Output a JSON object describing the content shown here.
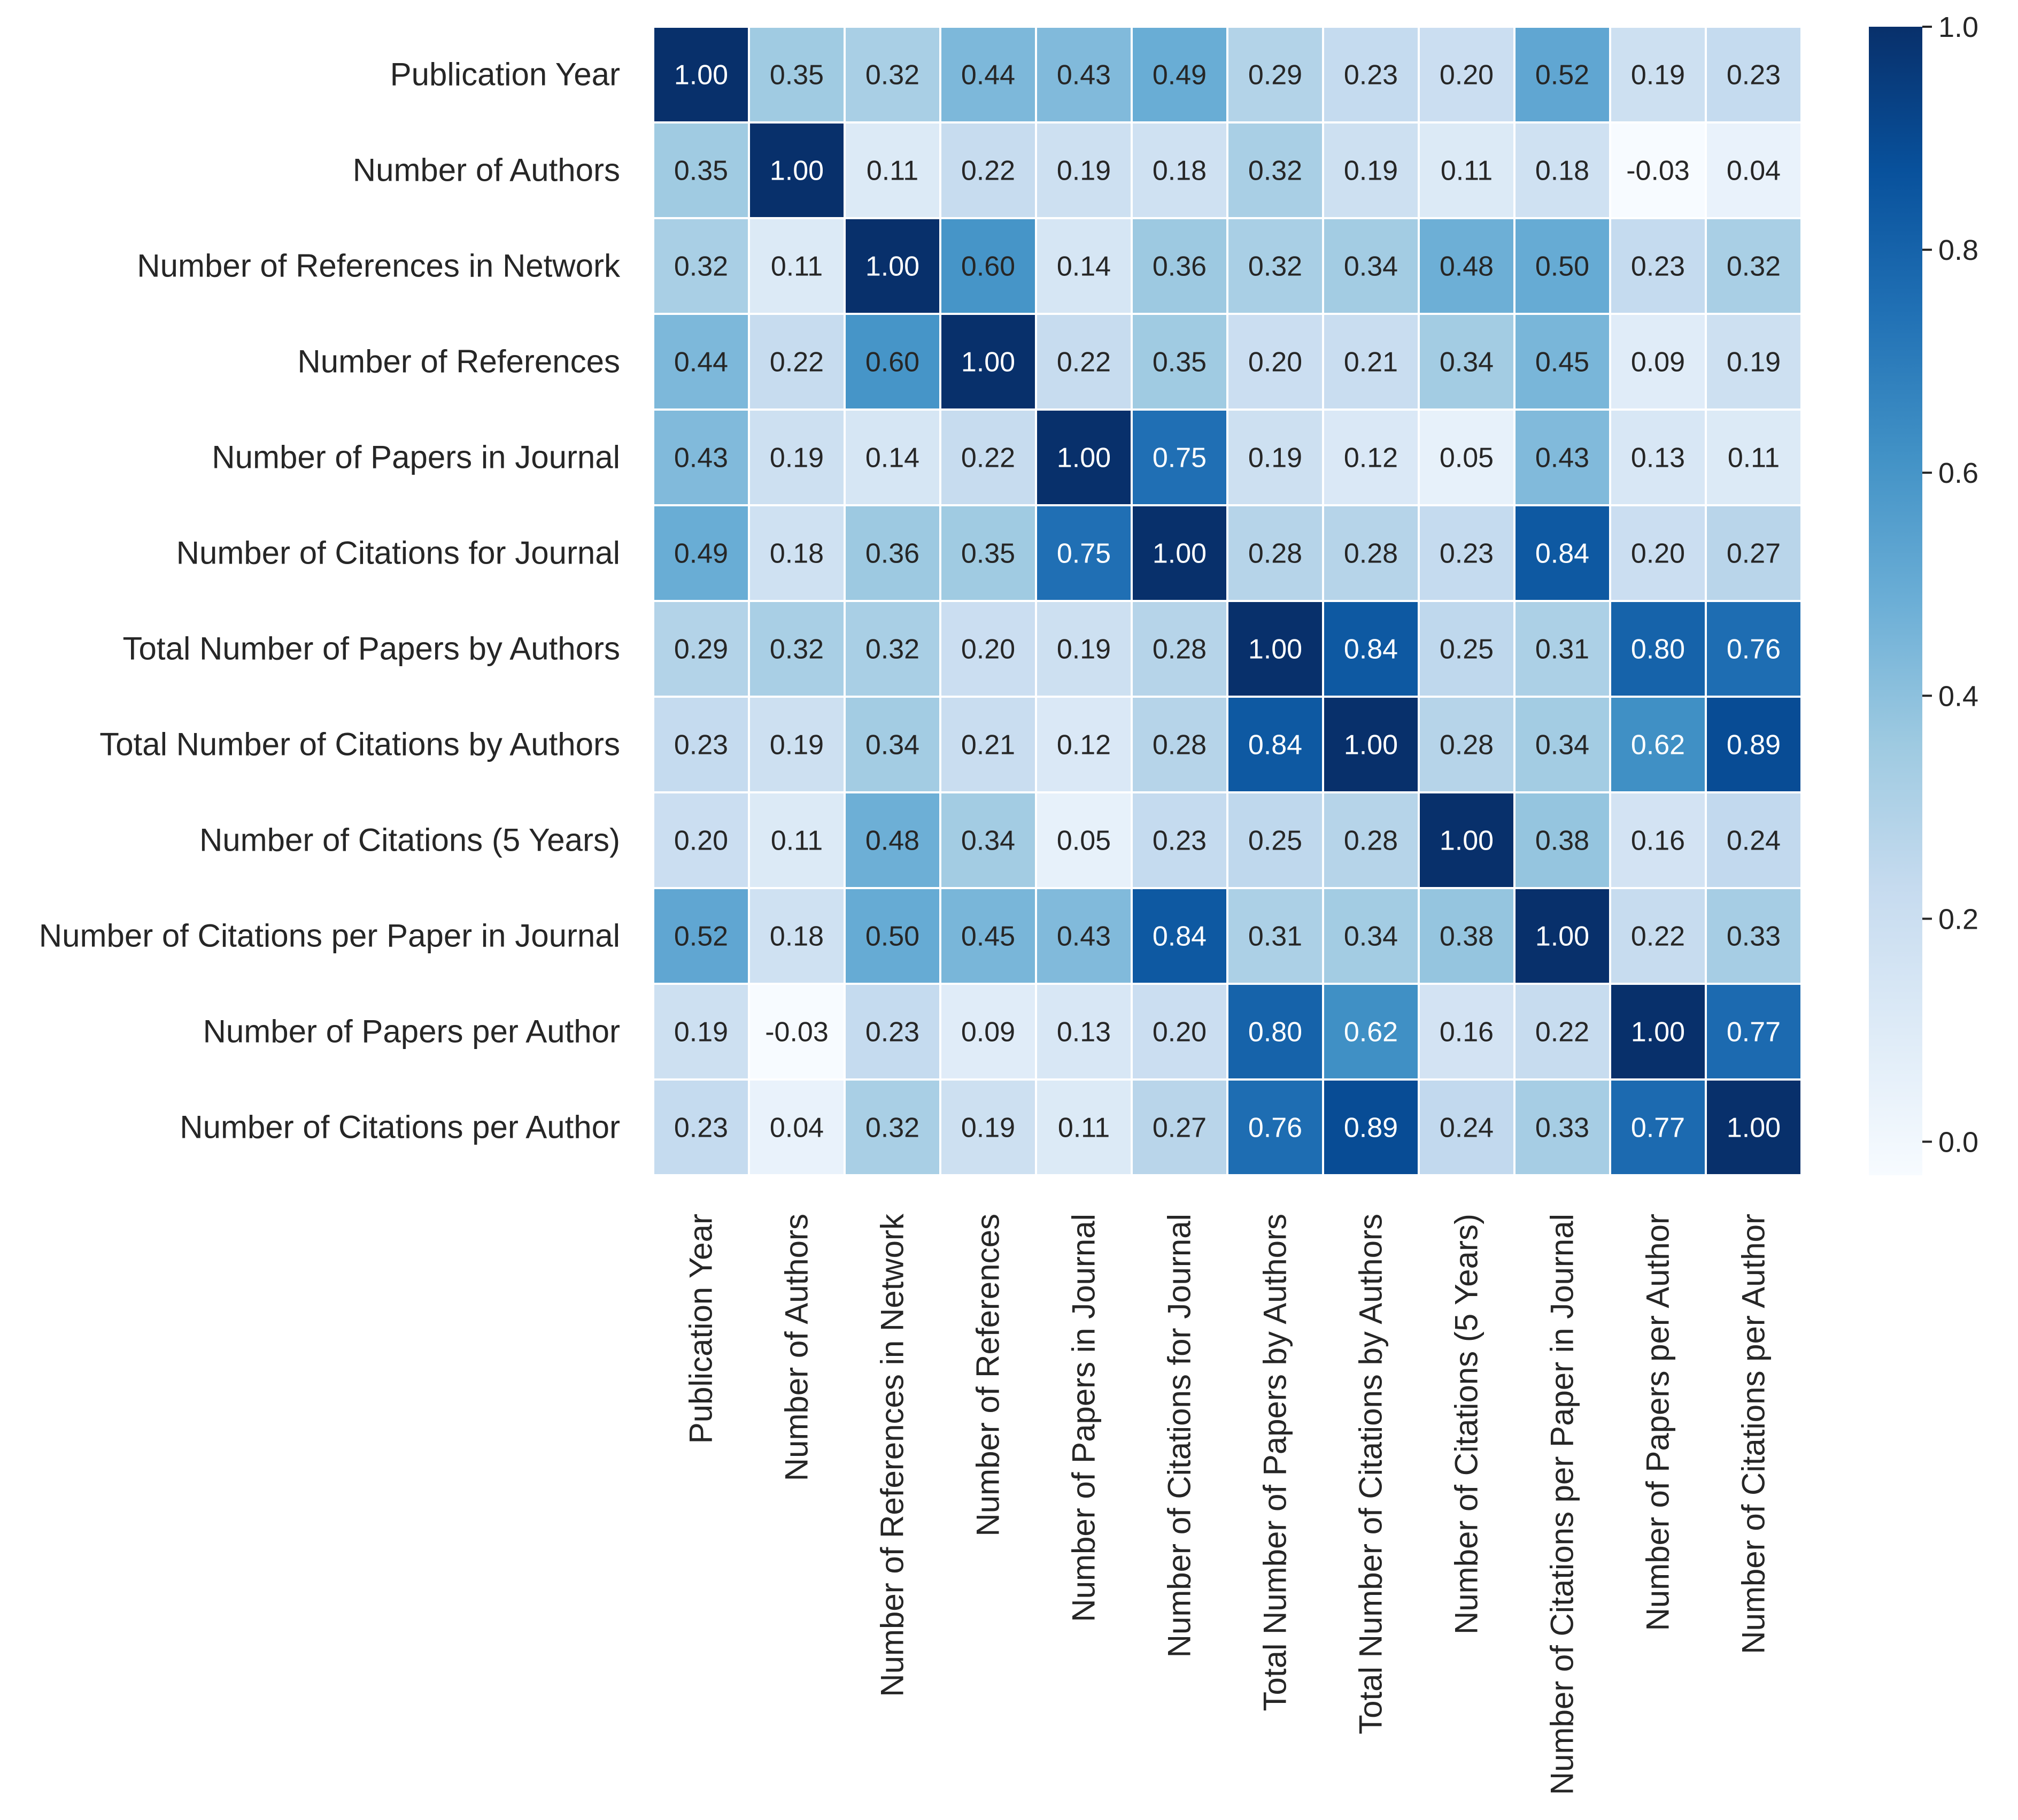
{
  "chart_data": {
    "type": "heatmap",
    "title": "",
    "xlabel": "",
    "ylabel": "",
    "variables": [
      "Publication Year",
      "Number of Authors",
      "Number of References in Network",
      "Number of References",
      "Number of Papers in Journal",
      "Number of Citations for Journal",
      "Total Number of Papers by Authors",
      "Total Number of Citations by Authors",
      "Number of Citations (5 Years)",
      "Number of Citations per Paper in Journal",
      "Number of Papers per Author",
      "Number of Citations per Author"
    ],
    "values": [
      [
        1.0,
        0.35,
        0.32,
        0.44,
        0.43,
        0.49,
        0.29,
        0.23,
        0.2,
        0.52,
        0.19,
        0.23
      ],
      [
        0.35,
        1.0,
        0.11,
        0.22,
        0.19,
        0.18,
        0.32,
        0.19,
        0.11,
        0.18,
        -0.03,
        0.04
      ],
      [
        0.32,
        0.11,
        1.0,
        0.6,
        0.14,
        0.36,
        0.32,
        0.34,
        0.48,
        0.5,
        0.23,
        0.32
      ],
      [
        0.44,
        0.22,
        0.6,
        1.0,
        0.22,
        0.35,
        0.2,
        0.21,
        0.34,
        0.45,
        0.09,
        0.19
      ],
      [
        0.43,
        0.19,
        0.14,
        0.22,
        1.0,
        0.75,
        0.19,
        0.12,
        0.05,
        0.43,
        0.13,
        0.11
      ],
      [
        0.49,
        0.18,
        0.36,
        0.35,
        0.75,
        1.0,
        0.28,
        0.28,
        0.23,
        0.84,
        0.2,
        0.27
      ],
      [
        0.29,
        0.32,
        0.32,
        0.2,
        0.19,
        0.28,
        1.0,
        0.84,
        0.25,
        0.31,
        0.8,
        0.76
      ],
      [
        0.23,
        0.19,
        0.34,
        0.21,
        0.12,
        0.28,
        0.84,
        1.0,
        0.28,
        0.34,
        0.62,
        0.89
      ],
      [
        0.2,
        0.11,
        0.48,
        0.34,
        0.05,
        0.23,
        0.25,
        0.28,
        1.0,
        0.38,
        0.16,
        0.24
      ],
      [
        0.52,
        0.18,
        0.5,
        0.45,
        0.43,
        0.84,
        0.31,
        0.34,
        0.38,
        1.0,
        0.22,
        0.33
      ],
      [
        0.19,
        -0.03,
        0.23,
        0.09,
        0.13,
        0.2,
        0.8,
        0.62,
        0.16,
        0.22,
        1.0,
        0.77
      ],
      [
        0.23,
        0.04,
        0.32,
        0.19,
        0.11,
        0.27,
        0.76,
        0.89,
        0.24,
        0.33,
        0.77,
        1.0
      ]
    ],
    "value_format": "2 decimals",
    "colormap": "Blues",
    "colormap_stops": [
      "#f7fbff",
      "#deebf7",
      "#c6dbef",
      "#9ecae1",
      "#6baed6",
      "#4292c6",
      "#2171b5",
      "#08519c",
      "#08306b"
    ],
    "vmin": -0.03,
    "vmax": 1.0,
    "colorbar": {
      "ticks": [
        0.0,
        0.2,
        0.4,
        0.6,
        0.8,
        1.0
      ],
      "tick_labels": [
        "0.0",
        "0.2",
        "0.4",
        "0.6",
        "0.8",
        "1.0"
      ],
      "position": "right"
    },
    "grid": false,
    "cell_border_color": "#ffffff"
  }
}
